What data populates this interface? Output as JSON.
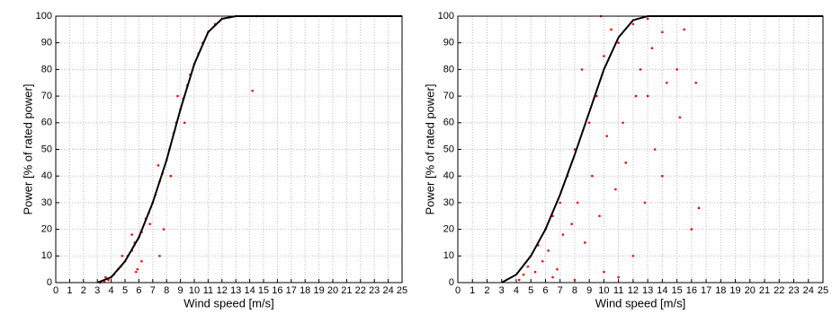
{
  "chart_data": [
    {
      "type": "scatter",
      "xlabel": "Wind speed [m/s]",
      "ylabel": "Power [% of rated power]",
      "xlim": [
        0,
        25
      ],
      "ylim": [
        0,
        100
      ],
      "xticks": [
        0,
        1,
        2,
        3,
        4,
        5,
        6,
        7,
        8,
        9,
        10,
        11,
        12,
        13,
        14,
        15,
        16,
        17,
        18,
        19,
        20,
        21,
        22,
        23,
        24,
        25
      ],
      "yticks": [
        0,
        10,
        20,
        30,
        40,
        50,
        60,
        70,
        80,
        90,
        100
      ],
      "grid": true,
      "series": [
        {
          "mode": "markers",
          "color": "#ff0000",
          "x": [
            3.2,
            3.5,
            3.8,
            4,
            4.2,
            4.5,
            4.7,
            5,
            5.2,
            5.5,
            5.7,
            6,
            6.2,
            6.5,
            6.7,
            7,
            7.2,
            7.5,
            7.7,
            8,
            8.2,
            8.5,
            8.7,
            9,
            9.2,
            9.5,
            9.7,
            10,
            10.3,
            10.6,
            11,
            11.5,
            12,
            12.5,
            13,
            14.5,
            5.8,
            6.2,
            7.5,
            7.8,
            14.2,
            5.5,
            6.8,
            8.3,
            9.3,
            4.8,
            3.6,
            5.9,
            7.4,
            8.8
          ],
          "values": [
            0,
            0.5,
            1,
            2,
            3,
            5,
            6,
            8,
            10,
            12,
            15,
            17,
            19,
            24,
            26,
            30,
            33,
            38,
            41,
            46,
            50,
            56,
            60,
            65,
            69,
            74,
            78,
            82,
            86,
            90,
            94,
            97,
            99,
            99.5,
            100,
            100,
            4,
            8,
            10,
            20,
            72,
            18,
            22,
            40,
            60,
            10,
            2,
            5,
            44,
            70
          ]
        },
        {
          "mode": "line",
          "color": "#000000",
          "x": [
            3,
            4,
            5,
            6,
            7,
            8,
            9,
            10,
            11,
            12,
            13,
            14,
            25
          ],
          "values": [
            0,
            2,
            8,
            17,
            30,
            46,
            65,
            82,
            94,
            99,
            100,
            100,
            100
          ]
        }
      ]
    },
    {
      "type": "scatter",
      "xlabel": "Wind speed [m/s]",
      "ylabel": "Power [% of rated power]",
      "xlim": [
        0,
        25
      ],
      "ylim": [
        0,
        100
      ],
      "xticks": [
        0,
        1,
        2,
        3,
        4,
        5,
        6,
        7,
        8,
        9,
        10,
        11,
        12,
        13,
        14,
        15,
        16,
        17,
        18,
        19,
        20,
        21,
        22,
        23,
        24,
        25
      ],
      "yticks": [
        0,
        10,
        20,
        30,
        40,
        50,
        60,
        70,
        80,
        90,
        100
      ],
      "grid": true,
      "series": [
        {
          "mode": "markers",
          "color": "#ff0000",
          "x": [
            4.2,
            4.5,
            4.8,
            5,
            5.3,
            5.5,
            5.8,
            6,
            6.2,
            6.5,
            6.8,
            7,
            7.2,
            7.5,
            7.8,
            8,
            8.2,
            8.5,
            8.7,
            9,
            9.2,
            9.5,
            9.7,
            10,
            10.2,
            10.5,
            10.8,
            11,
            11.3,
            11.5,
            12,
            12.2,
            12.5,
            12.8,
            13,
            13.3,
            13.5,
            14,
            14.3,
            15,
            15.2,
            15.5,
            16,
            16.5,
            16.3,
            9.8,
            11,
            12,
            6.5,
            8,
            10,
            13,
            14
          ],
          "values": [
            1,
            3,
            6,
            10,
            4,
            14,
            8,
            20,
            12,
            25,
            5,
            30,
            18,
            40,
            22,
            50,
            30,
            80,
            15,
            60,
            40,
            70,
            25,
            85,
            55,
            95,
            35,
            90,
            60,
            45,
            97,
            70,
            80,
            30,
            99,
            88,
            50,
            94,
            75,
            80,
            62,
            95,
            20,
            28,
            75,
            100,
            2,
            10,
            2,
            1,
            4,
            70,
            40
          ]
        },
        {
          "mode": "line",
          "color": "#000000",
          "x": [
            3,
            4,
            5,
            6,
            7,
            8,
            9,
            10,
            11,
            12,
            13,
            14,
            25
          ],
          "values": [
            0,
            3,
            10,
            20,
            33,
            48,
            64,
            80,
            92,
            98.5,
            100,
            100,
            100
          ]
        }
      ]
    }
  ]
}
